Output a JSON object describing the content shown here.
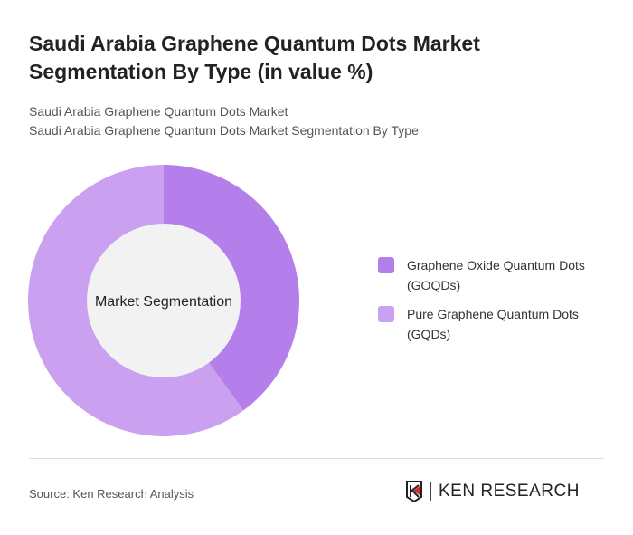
{
  "title": "Saudi Arabia Graphene Quantum Dots Market Segmentation By Type (in value %)",
  "subtitle1": "Saudi Arabia Graphene Quantum Dots Market",
  "subtitle2": "Saudi Arabia Graphene Quantum Dots Market Segmentation By Type",
  "source": "Source: Ken Research Analysis",
  "logo_text": "KEN RESEARCH",
  "chart_data": {
    "type": "pie",
    "variant": "donut",
    "center_label": "Market Segmentation",
    "categories": [
      "Graphene Oxide Quantum Dots (GOQDs)",
      "Pure Graphene Quantum Dots (GQDs)"
    ],
    "values": [
      40,
      60
    ],
    "colors": [
      "#b47fea",
      "#c9a1f0"
    ],
    "legend_position": "right"
  }
}
